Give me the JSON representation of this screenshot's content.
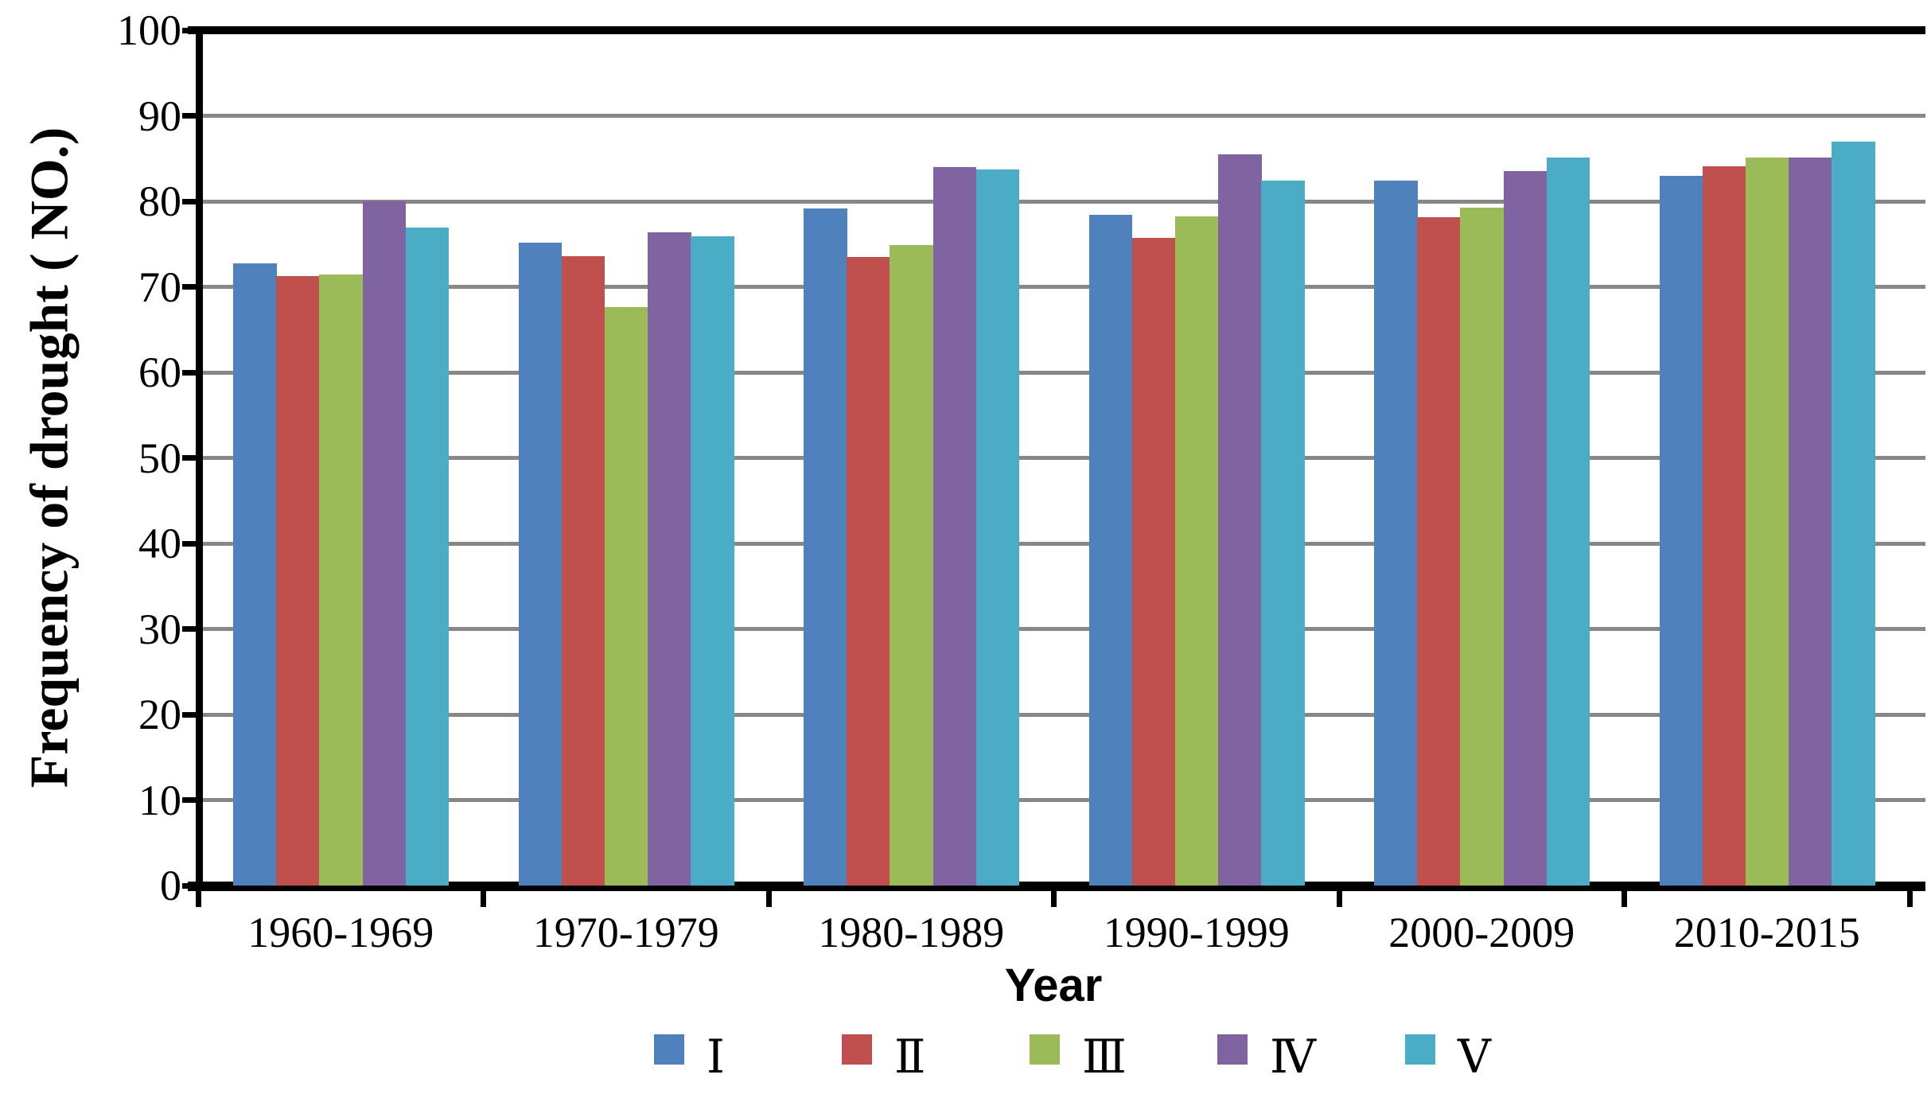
{
  "chart_data": {
    "type": "bar",
    "title": "",
    "xlabel": "Year",
    "ylabel": "Frequency of drought ( NO.)",
    "ylim": [
      0,
      100
    ],
    "yticks": [
      0,
      10,
      20,
      30,
      40,
      50,
      60,
      70,
      80,
      90,
      100
    ],
    "grid": "horizontal gray gridlines at every 10 units, black top border",
    "legend_position": "bottom center",
    "categories": [
      "1960-1969",
      "1970-1979",
      "1980-1989",
      "1990-1999",
      "2000-2009",
      "2010-2015"
    ],
    "series": [
      {
        "id": "I",
        "name": "Ⅰ",
        "color": "#4F81BD",
        "values": [
          72.7,
          75.2,
          79.2,
          78.4,
          82.4,
          83.0
        ]
      },
      {
        "id": "II",
        "name": "Ⅱ",
        "color": "#C0504D",
        "values": [
          71.3,
          73.6,
          73.5,
          75.7,
          78.1,
          84.1
        ]
      },
      {
        "id": "III",
        "name": "Ⅲ",
        "color": "#9BBB59",
        "values": [
          71.4,
          67.6,
          74.9,
          78.2,
          79.3,
          85.1
        ]
      },
      {
        "id": "IV",
        "name": "Ⅳ",
        "color": "#8064A2",
        "values": [
          80.0,
          76.4,
          84.0,
          85.5,
          83.5,
          85.1
        ]
      },
      {
        "id": "V",
        "name": "Ⅴ",
        "color": "#4BACC6",
        "values": [
          76.9,
          75.9,
          83.7,
          82.4,
          85.1,
          87.0
        ]
      }
    ],
    "colors": {
      "gridline": "#878787",
      "axis": "#000000",
      "text": "#000000",
      "background": "#ffffff"
    }
  }
}
